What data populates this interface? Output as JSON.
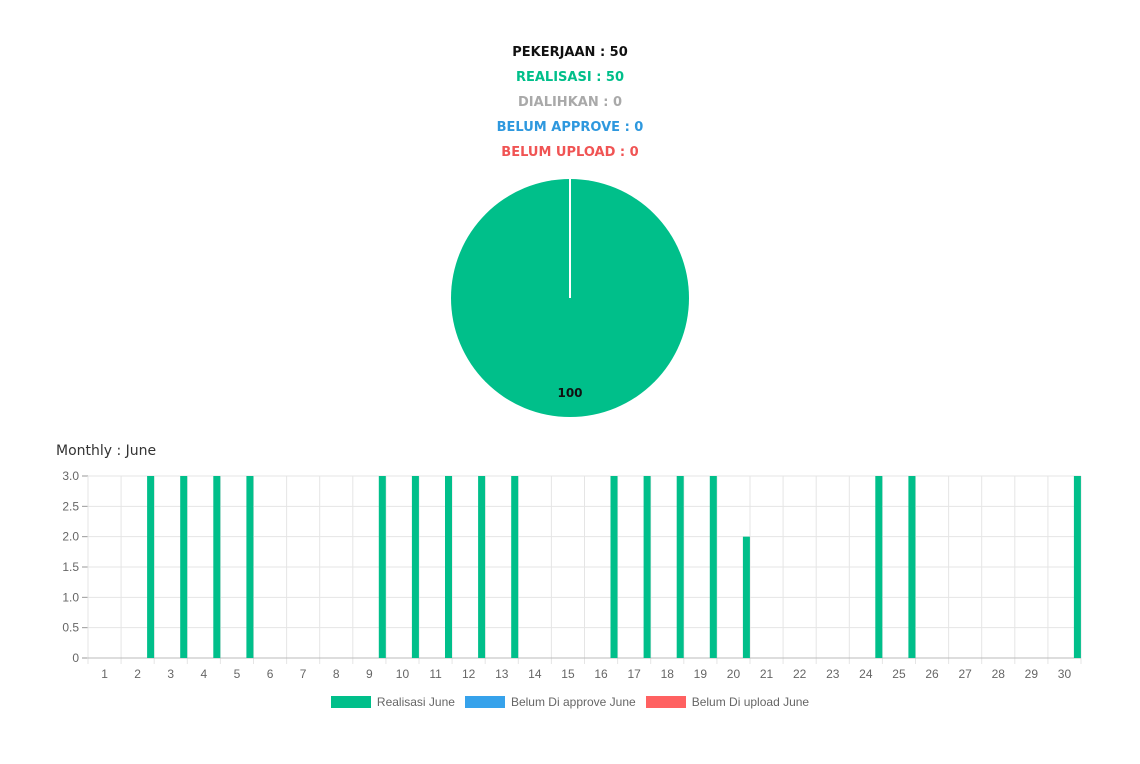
{
  "summary": {
    "pekerjaan": {
      "text": "PEKERJAAN : 50",
      "color": "#111111"
    },
    "realisasi": {
      "text": "REALISASI : 50",
      "color": "#00bf8a"
    },
    "dialihkan": {
      "text": "DIALIHKAN : 0",
      "color": "#a9a9a9"
    },
    "belum_approve": {
      "text": "BELUM APPROVE : 0",
      "color": "#2e98de"
    },
    "belum_upload": {
      "text": "BELUM UPLOAD : 0",
      "color": "#f05454"
    }
  },
  "colors": {
    "realisasi": "#00bf8a",
    "belum_approve": "#36a2eb",
    "belum_upload": "#ff6161",
    "grid": "#e5e5e5",
    "axis": "#666666"
  },
  "monthly_title": "Monthly : June",
  "chart_data": [
    {
      "type": "pie",
      "slices": [
        {
          "label": "",
          "value": 100,
          "color": "#00bf8a"
        }
      ],
      "data_labels": [
        "100"
      ]
    },
    {
      "type": "bar",
      "title": "Monthly : June",
      "categories": [
        "1",
        "2",
        "3",
        "4",
        "5",
        "6",
        "7",
        "8",
        "9",
        "10",
        "11",
        "12",
        "13",
        "14",
        "15",
        "16",
        "17",
        "18",
        "19",
        "20",
        "21",
        "22",
        "23",
        "24",
        "25",
        "26",
        "27",
        "28",
        "29",
        "30"
      ],
      "series": [
        {
          "name": "Realisasi June",
          "color": "#00bf8a",
          "values": [
            0,
            3,
            3,
            3,
            3,
            0,
            0,
            0,
            3,
            3,
            3,
            3,
            3,
            0,
            0,
            3,
            3,
            3,
            3,
            2,
            0,
            0,
            0,
            3,
            3,
            0,
            0,
            0,
            0,
            3
          ]
        },
        {
          "name": "Belum Di approve June",
          "color": "#36a2eb",
          "values": [
            0,
            0,
            0,
            0,
            0,
            0,
            0,
            0,
            0,
            0,
            0,
            0,
            0,
            0,
            0,
            0,
            0,
            0,
            0,
            0,
            0,
            0,
            0,
            0,
            0,
            0,
            0,
            0,
            0,
            0
          ]
        },
        {
          "name": "Belum Di upload June",
          "color": "#ff6161",
          "values": [
            0,
            0,
            0,
            0,
            0,
            0,
            0,
            0,
            0,
            0,
            0,
            0,
            0,
            0,
            0,
            0,
            0,
            0,
            0,
            0,
            0,
            0,
            0,
            0,
            0,
            0,
            0,
            0,
            0,
            0
          ]
        }
      ],
      "ylim": [
        0,
        3
      ],
      "yticks": [
        "0",
        "0.5",
        "1.0",
        "1.5",
        "2.0",
        "2.5",
        "3.0"
      ],
      "grid": true,
      "legend_position": "bottom"
    }
  ]
}
